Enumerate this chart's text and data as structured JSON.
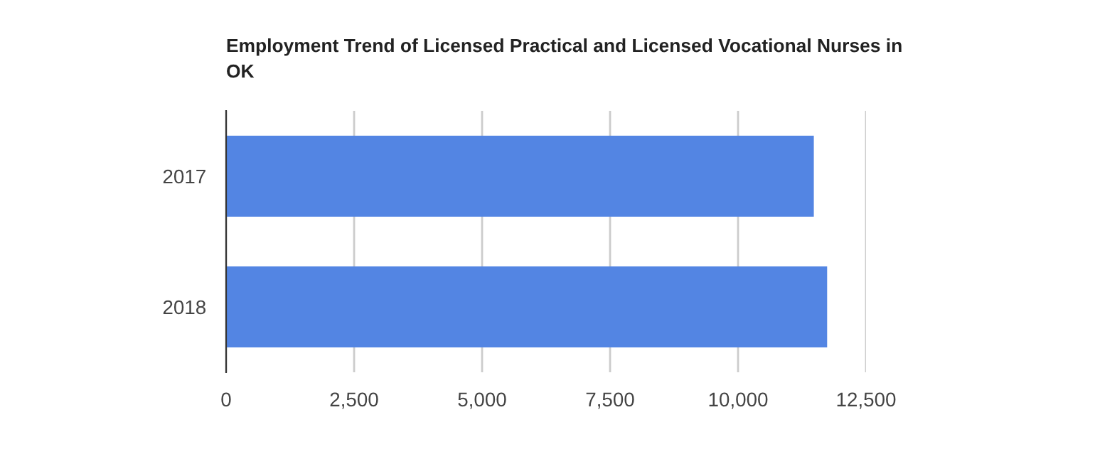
{
  "chart_data": {
    "type": "bar",
    "orientation": "horizontal",
    "title": "Employment Trend of Licensed Practical and Licensed Vocational Nurses in\nOK",
    "categories": [
      "2017",
      "2018"
    ],
    "values": [
      11480,
      11740
    ],
    "color": "#5385e3",
    "xlim": [
      0,
      12500
    ],
    "xticks": [
      0,
      {
        "value": 2500,
        "label": "2,500"
      },
      {
        "value": 5000,
        "label": "5,000"
      },
      {
        "value": 7500,
        "label": "7,500"
      },
      {
        "value": 10000,
        "label": "10,000"
      },
      {
        "value": 12500,
        "label": "12,500"
      }
    ],
    "grid": "x"
  }
}
